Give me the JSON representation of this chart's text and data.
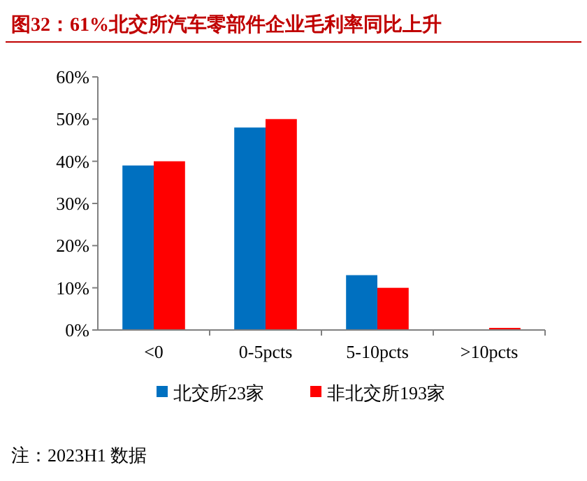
{
  "chart_data": {
    "type": "bar",
    "title": "图32：61%北交所汽车零部件企业毛利率同比上升",
    "categories": [
      "<0",
      "0-5pcts",
      "5-10pcts",
      ">10pcts"
    ],
    "series": [
      {
        "name": "北交所23家",
        "color": "#0070c0",
        "values": [
          39,
          48,
          13,
          0
        ]
      },
      {
        "name": "非北交所193家",
        "color": "#ff0000",
        "values": [
          40,
          50,
          10,
          0.5
        ]
      }
    ],
    "ylim": [
      0,
      60
    ],
    "yticks": [
      {
        "value": 0,
        "label": "0%"
      },
      {
        "value": 10,
        "label": "10%"
      },
      {
        "value": 20,
        "label": "20%"
      },
      {
        "value": 30,
        "label": "30%"
      },
      {
        "value": 40,
        "label": "40%"
      },
      {
        "value": 50,
        "label": "50%"
      },
      {
        "value": 60,
        "label": "60%"
      }
    ],
    "legend": "bottom",
    "grid": false,
    "annotations": [
      "注：2023H1 数据"
    ]
  }
}
